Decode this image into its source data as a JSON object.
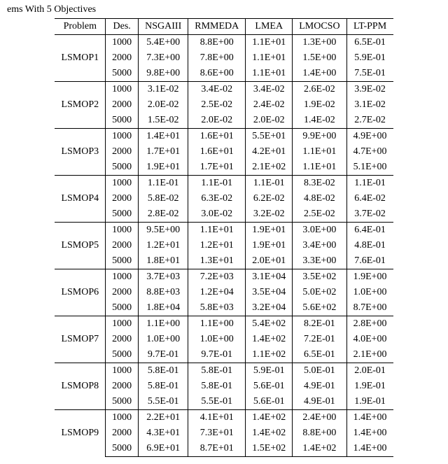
{
  "caption": "ems With 5 Objectives",
  "columns": [
    "Problem",
    "Des.",
    "NSGAIII",
    "RMMEDA",
    "LMEA",
    "LMOCSO",
    "LT-PPM"
  ],
  "last_col_bold_header": true,
  "groups": [
    {
      "problem": "LSMOP1",
      "rows": [
        {
          "des": "1000",
          "cells": [
            {
              "v": "5.4E+00"
            },
            {
              "v": "8.8E+00"
            },
            {
              "v": "1.1E+01"
            },
            {
              "v": "1.3E+00"
            },
            {
              "v": "6.5E-01",
              "b": true
            }
          ]
        },
        {
          "des": "2000",
          "cells": [
            {
              "v": "7.3E+00"
            },
            {
              "v": "7.8E+00"
            },
            {
              "v": "1.1E+01"
            },
            {
              "v": "1.5E+00"
            },
            {
              "v": "5.9E-01",
              "b": true
            }
          ]
        },
        {
          "des": "5000",
          "cells": [
            {
              "v": "9.8E+00"
            },
            {
              "v": "8.6E+00"
            },
            {
              "v": "1.1E+01"
            },
            {
              "v": "1.4E+00"
            },
            {
              "v": "7.5E-01",
              "b": true
            }
          ]
        }
      ]
    },
    {
      "problem": "LSMOP2",
      "rows": [
        {
          "des": "1000",
          "cells": [
            {
              "v": "3.1E-02"
            },
            {
              "v": "3.4E-02"
            },
            {
              "v": "3.4E-02"
            },
            {
              "v": "2.6E-02",
              "b": true
            },
            {
              "v": "3.9E-02"
            }
          ]
        },
        {
          "des": "2000",
          "cells": [
            {
              "v": "2.0E-02"
            },
            {
              "v": "2.5E-02"
            },
            {
              "v": "2.4E-02"
            },
            {
              "v": "1.9E-02",
              "b": true
            },
            {
              "v": "3.1E-02"
            }
          ]
        },
        {
          "des": "5000",
          "cells": [
            {
              "v": "1.5E-02"
            },
            {
              "v": "2.0E-02"
            },
            {
              "v": "2.0E-02"
            },
            {
              "v": "1.4E-02",
              "b": true
            },
            {
              "v": "2.7E-02"
            }
          ]
        }
      ]
    },
    {
      "problem": "LSMOP3",
      "rows": [
        {
          "des": "1000",
          "cells": [
            {
              "v": "1.4E+01"
            },
            {
              "v": "1.6E+01"
            },
            {
              "v": "5.5E+01"
            },
            {
              "v": "9.9E+00"
            },
            {
              "v": "4.9E+00",
              "b": true
            }
          ]
        },
        {
          "des": "2000",
          "cells": [
            {
              "v": "1.7E+01"
            },
            {
              "v": "1.6E+01"
            },
            {
              "v": "4.2E+01"
            },
            {
              "v": "1.1E+01"
            },
            {
              "v": "4.7E+00",
              "b": true
            }
          ]
        },
        {
          "des": "5000",
          "cells": [
            {
              "v": "1.9E+01"
            },
            {
              "v": "1.7E+01"
            },
            {
              "v": "2.1E+02"
            },
            {
              "v": "1.1E+01"
            },
            {
              "v": "5.1E+00",
              "b": true
            }
          ]
        }
      ]
    },
    {
      "problem": "LSMOP4",
      "rows": [
        {
          "des": "1000",
          "cells": [
            {
              "v": "1.1E-01"
            },
            {
              "v": "1.1E-01"
            },
            {
              "v": "1.1E-01"
            },
            {
              "v": "8.3E-02",
              "b": true
            },
            {
              "v": "1.1E-01"
            }
          ]
        },
        {
          "des": "2000",
          "cells": [
            {
              "v": "5.8E-02"
            },
            {
              "v": "6.3E-02"
            },
            {
              "v": "6.2E-02"
            },
            {
              "v": "4.8E-02",
              "b": true
            },
            {
              "v": "6.4E-02"
            }
          ]
        },
        {
          "des": "5000",
          "cells": [
            {
              "v": "2.8E-02"
            },
            {
              "v": "3.0E-02"
            },
            {
              "v": "3.2E-02"
            },
            {
              "v": "2.5E-02",
              "b": true
            },
            {
              "v": "3.7E-02"
            }
          ]
        }
      ]
    },
    {
      "problem": "LSMOP5",
      "rows": [
        {
          "des": "1000",
          "cells": [
            {
              "v": "9.5E+00"
            },
            {
              "v": "1.1E+01"
            },
            {
              "v": "1.9E+01"
            },
            {
              "v": "3.0E+00"
            },
            {
              "v": "6.4E-01",
              "b": true
            }
          ]
        },
        {
          "des": "2000",
          "cells": [
            {
              "v": "1.2E+01"
            },
            {
              "v": "1.2E+01"
            },
            {
              "v": "1.9E+01"
            },
            {
              "v": "3.4E+00"
            },
            {
              "v": "4.8E-01",
              "b": true
            }
          ]
        },
        {
          "des": "5000",
          "cells": [
            {
              "v": "1.8E+01"
            },
            {
              "v": "1.3E+01"
            },
            {
              "v": "2.0E+01"
            },
            {
              "v": "3.3E+00"
            },
            {
              "v": "7.6E-01",
              "b": true
            }
          ]
        }
      ]
    },
    {
      "problem": "LSMOP6",
      "rows": [
        {
          "des": "1000",
          "cells": [
            {
              "v": "3.7E+03"
            },
            {
              "v": "7.2E+03"
            },
            {
              "v": "3.1E+04"
            },
            {
              "v": "3.5E+02"
            },
            {
              "v": "1.9E+00",
              "b": true
            }
          ]
        },
        {
          "des": "2000",
          "cells": [
            {
              "v": "8.8E+03"
            },
            {
              "v": "1.2E+04"
            },
            {
              "v": "3.5E+04"
            },
            {
              "v": "5.0E+02"
            },
            {
              "v": "1.0E+00",
              "b": true
            }
          ]
        },
        {
          "des": "5000",
          "cells": [
            {
              "v": "1.8E+04"
            },
            {
              "v": "5.8E+03"
            },
            {
              "v": "3.2E+04"
            },
            {
              "v": "5.6E+02"
            },
            {
              "v": "8.7E+00",
              "b": true
            }
          ]
        }
      ]
    },
    {
      "problem": "LSMOP7",
      "rows": [
        {
          "des": "1000",
          "cells": [
            {
              "v": "1.1E+00"
            },
            {
              "v": "1.1E+00"
            },
            {
              "v": "5.4E+02"
            },
            {
              "v": "8.2E-01",
              "b": true
            },
            {
              "v": "2.8E+00"
            }
          ]
        },
        {
          "des": "2000",
          "cells": [
            {
              "v": "1.0E+00"
            },
            {
              "v": "1.0E+00"
            },
            {
              "v": "1.4E+02"
            },
            {
              "v": "7.2E-01",
              "b": true
            },
            {
              "v": "4.0E+00"
            }
          ]
        },
        {
          "des": "5000",
          "cells": [
            {
              "v": "9.7E-01"
            },
            {
              "v": "9.7E-01"
            },
            {
              "v": "1.1E+02"
            },
            {
              "v": "6.5E-01",
              "b": true
            },
            {
              "v": "2.1E+00"
            }
          ]
        }
      ]
    },
    {
      "problem": "LSMOP8",
      "rows": [
        {
          "des": "1000",
          "cells": [
            {
              "v": "5.8E-01"
            },
            {
              "v": "5.8E-01"
            },
            {
              "v": "5.9E-01"
            },
            {
              "v": "5.0E-01"
            },
            {
              "v": "2.0E-01",
              "b": true
            }
          ]
        },
        {
          "des": "2000",
          "cells": [
            {
              "v": "5.8E-01"
            },
            {
              "v": "5.8E-01"
            },
            {
              "v": "5.6E-01"
            },
            {
              "v": "4.9E-01"
            },
            {
              "v": "1.9E-01",
              "b": true
            }
          ]
        },
        {
          "des": "5000",
          "cells": [
            {
              "v": "5.5E-01"
            },
            {
              "v": "5.5E-01"
            },
            {
              "v": "5.6E-01"
            },
            {
              "v": "4.9E-01"
            },
            {
              "v": "1.9E-01",
              "b": true
            }
          ]
        }
      ]
    },
    {
      "problem": "LSMOP9",
      "rows": [
        {
          "des": "1000",
          "cells": [
            {
              "v": "2.2E+01"
            },
            {
              "v": "4.1E+01"
            },
            {
              "v": "1.4E+02"
            },
            {
              "v": "2.4E+00"
            },
            {
              "v": "1.4E+00",
              "b": true
            }
          ]
        },
        {
          "des": "2000",
          "cells": [
            {
              "v": "4.3E+01"
            },
            {
              "v": "7.3E+01"
            },
            {
              "v": "1.4E+02"
            },
            {
              "v": "8.8E+00"
            },
            {
              "v": "1.4E+00",
              "b": true
            }
          ]
        },
        {
          "des": "5000",
          "cells": [
            {
              "v": "6.9E+01"
            },
            {
              "v": "8.7E+01"
            },
            {
              "v": "1.5E+02"
            },
            {
              "v": "1.4E+02"
            },
            {
              "v": "1.4E+00",
              "b": true
            }
          ]
        }
      ]
    }
  ]
}
